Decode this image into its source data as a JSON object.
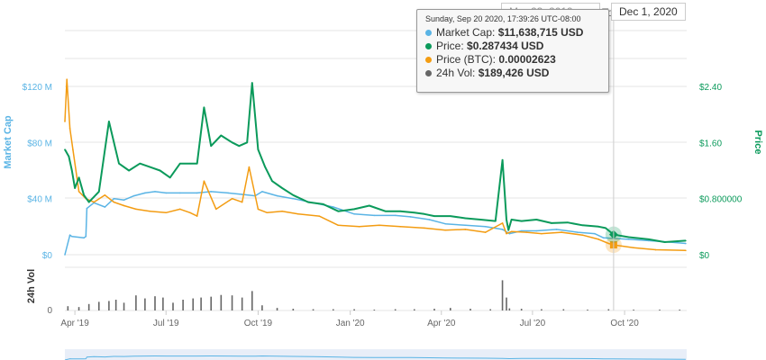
{
  "date_range": {
    "from": "Mar 23, 2019",
    "separator": "To",
    "to": "Dec 1, 2020"
  },
  "tooltip": {
    "date": "Sunday, Sep 20 2020, 17:39:26 UTC-08:00",
    "rows": [
      {
        "label": "Market Cap:",
        "value": "$11,638,715 USD",
        "color": "#5ab4e5"
      },
      {
        "label": "Price:",
        "value": "$0.287434 USD",
        "color": "#0b9a5b"
      },
      {
        "label": "Price (BTC):",
        "value": "0.00002623",
        "color": "#f39c12"
      },
      {
        "label": "24h Vol:",
        "value": "$189,426 USD",
        "color": "#666666"
      }
    ]
  },
  "colors": {
    "market_cap": "#5ab4e5",
    "price": "#0b9a5b",
    "price_btc": "#f39c12",
    "volume": "#666666"
  },
  "chart_data": {
    "type": "line",
    "x_ticks": [
      "Apr '19",
      "Jul '19",
      "Oct '19",
      "Jan '20",
      "Apr '20",
      "Jul '20",
      "Oct '20"
    ],
    "left_axis": {
      "label": "Market Cap",
      "ticks": [
        "$0",
        "$40 M",
        "$80 M",
        "$120 M"
      ],
      "ylim": [
        0,
        120
      ]
    },
    "right_axis": {
      "label": "Price",
      "ticks": [
        "$0",
        "$0.800000",
        "$1.60",
        "$2.40"
      ],
      "ylim": [
        0,
        2.4
      ]
    },
    "volume_axis": {
      "label": "24h Vol",
      "ticks": [
        "0"
      ]
    },
    "x_start": "2019-03-22",
    "x_end": "2020-12-02",
    "series": [
      {
        "name": "Market Cap",
        "axis": "left",
        "x": [
          "2019-03-22",
          "2019-03-27",
          "2019-03-29",
          "2019-04-10",
          "2019-04-12",
          "2019-04-13",
          "2019-04-20",
          "2019-05-01",
          "2019-05-10",
          "2019-05-20",
          "2019-05-30",
          "2019-06-10",
          "2019-06-20",
          "2019-07-01",
          "2019-07-15",
          "2019-08-01",
          "2019-08-15",
          "2019-09-01",
          "2019-09-15",
          "2019-09-28",
          "2019-10-05",
          "2019-10-20",
          "2019-11-05",
          "2019-11-25",
          "2019-12-15",
          "2020-01-05",
          "2020-01-25",
          "2020-02-15",
          "2020-03-01",
          "2020-03-20",
          "2020-04-05",
          "2020-04-25",
          "2020-05-15",
          "2020-06-01",
          "2020-06-08",
          "2020-06-20",
          "2020-07-05",
          "2020-07-25",
          "2020-08-15",
          "2020-09-01",
          "2020-09-10",
          "2020-09-20",
          "2020-10-05",
          "2020-10-25",
          "2020-11-15",
          "2020-12-01"
        ],
        "values": [
          0,
          14,
          13,
          12,
          13,
          33,
          37,
          34,
          40,
          39,
          42,
          44,
          45,
          44,
          44,
          44,
          45,
          44,
          43,
          42,
          45,
          42,
          40,
          37,
          34,
          29,
          28,
          28,
          27,
          25,
          22,
          21,
          20,
          18,
          15,
          17,
          17,
          18,
          16,
          15,
          12,
          11.6,
          11,
          10,
          9,
          8
        ]
      },
      {
        "name": "Price",
        "axis": "right",
        "x": [
          "2019-03-22",
          "2019-03-26",
          "2019-03-29",
          "2019-04-01",
          "2019-04-05",
          "2019-04-10",
          "2019-04-15",
          "2019-04-25",
          "2019-05-05",
          "2019-05-15",
          "2019-05-25",
          "2019-06-05",
          "2019-06-15",
          "2019-06-25",
          "2019-07-05",
          "2019-07-15",
          "2019-07-25",
          "2019-08-01",
          "2019-08-08",
          "2019-08-15",
          "2019-08-25",
          "2019-09-05",
          "2019-09-12",
          "2019-09-20",
          "2019-09-25",
          "2019-10-01",
          "2019-10-08",
          "2019-10-15",
          "2019-10-25",
          "2019-11-05",
          "2019-11-20",
          "2019-12-05",
          "2019-12-20",
          "2020-01-05",
          "2020-01-20",
          "2020-02-05",
          "2020-02-20",
          "2020-03-05",
          "2020-03-15",
          "2020-03-25",
          "2020-04-10",
          "2020-04-25",
          "2020-05-10",
          "2020-05-25",
          "2020-06-01",
          "2020-06-05",
          "2020-06-07",
          "2020-06-10",
          "2020-06-20",
          "2020-07-05",
          "2020-07-20",
          "2020-08-05",
          "2020-08-20",
          "2020-09-05",
          "2020-09-12",
          "2020-09-20",
          "2020-10-05",
          "2020-10-25",
          "2020-11-10",
          "2020-12-01"
        ],
        "values": [
          1.5,
          1.4,
          1.2,
          0.95,
          1.1,
          0.85,
          0.75,
          0.9,
          1.9,
          1.3,
          1.2,
          1.3,
          1.25,
          1.2,
          1.1,
          1.3,
          1.3,
          1.3,
          2.1,
          1.55,
          1.7,
          1.6,
          1.55,
          1.6,
          2.45,
          1.5,
          1.25,
          1.05,
          0.95,
          0.85,
          0.75,
          0.72,
          0.62,
          0.65,
          0.7,
          0.62,
          0.62,
          0.6,
          0.58,
          0.55,
          0.55,
          0.52,
          0.5,
          0.48,
          1.35,
          0.5,
          0.35,
          0.5,
          0.48,
          0.5,
          0.45,
          0.46,
          0.42,
          0.4,
          0.38,
          0.287,
          0.25,
          0.22,
          0.18,
          0.2
        ]
      },
      {
        "name": "Price (BTC)",
        "axis": "right",
        "x": [
          "2019-03-22",
          "2019-03-24",
          "2019-03-27",
          "2019-03-30",
          "2019-04-05",
          "2019-04-12",
          "2019-04-20",
          "2019-05-01",
          "2019-05-10",
          "2019-05-20",
          "2019-06-01",
          "2019-06-15",
          "2019-07-01",
          "2019-07-15",
          "2019-07-25",
          "2019-08-01",
          "2019-08-08",
          "2019-08-20",
          "2019-09-05",
          "2019-09-15",
          "2019-09-22",
          "2019-10-01",
          "2019-10-10",
          "2019-10-25",
          "2019-11-10",
          "2019-12-01",
          "2019-12-20",
          "2020-01-10",
          "2020-01-30",
          "2020-02-20",
          "2020-03-15",
          "2020-04-05",
          "2020-04-25",
          "2020-05-15",
          "2020-06-01",
          "2020-06-05",
          "2020-06-10",
          "2020-06-25",
          "2020-07-10",
          "2020-07-30",
          "2020-08-20",
          "2020-09-05",
          "2020-09-15",
          "2020-09-20",
          "2020-10-10",
          "2020-11-01",
          "2020-12-01"
        ],
        "values": [
          1.9,
          2.5,
          1.8,
          1.5,
          0.9,
          0.8,
          0.75,
          0.85,
          0.75,
          0.7,
          0.65,
          0.62,
          0.6,
          0.65,
          0.6,
          0.55,
          1.05,
          0.65,
          0.8,
          0.75,
          1.25,
          0.65,
          0.6,
          0.62,
          0.58,
          0.55,
          0.42,
          0.4,
          0.42,
          0.4,
          0.38,
          0.35,
          0.36,
          0.32,
          0.45,
          0.3,
          0.33,
          0.32,
          0.3,
          0.32,
          0.28,
          0.22,
          0.16,
          0.14,
          0.1,
          0.07,
          0.06
        ]
      }
    ],
    "volume": {
      "x": [
        "2019-03-25",
        "2019-04-05",
        "2019-04-15",
        "2019-04-25",
        "2019-05-05",
        "2019-05-12",
        "2019-05-20",
        "2019-06-01",
        "2019-06-10",
        "2019-06-20",
        "2019-06-28",
        "2019-07-08",
        "2019-07-18",
        "2019-07-28",
        "2019-08-05",
        "2019-08-15",
        "2019-08-25",
        "2019-09-05",
        "2019-09-15",
        "2019-09-25",
        "2019-10-05",
        "2019-10-20",
        "2019-11-05",
        "2019-11-25",
        "2019-12-15",
        "2020-01-05",
        "2020-01-25",
        "2020-02-15",
        "2020-03-05",
        "2020-03-25",
        "2020-04-10",
        "2020-04-30",
        "2020-05-20",
        "2020-06-01",
        "2020-06-05",
        "2020-06-08",
        "2020-06-20",
        "2020-07-10",
        "2020-08-01",
        "2020-08-25",
        "2020-09-15",
        "2020-10-10",
        "2020-11-05",
        "2020-11-25"
      ],
      "values": [
        10,
        8,
        15,
        20,
        22,
        25,
        18,
        35,
        28,
        33,
        30,
        18,
        25,
        28,
        30,
        32,
        36,
        35,
        30,
        45,
        12,
        6,
        4,
        3,
        3,
        3,
        2,
        3,
        3,
        4,
        6,
        4,
        3,
        70,
        30,
        5,
        4,
        3,
        3,
        2,
        3,
        2,
        2,
        2
      ],
      "ylim": [
        0,
        100
      ]
    }
  }
}
